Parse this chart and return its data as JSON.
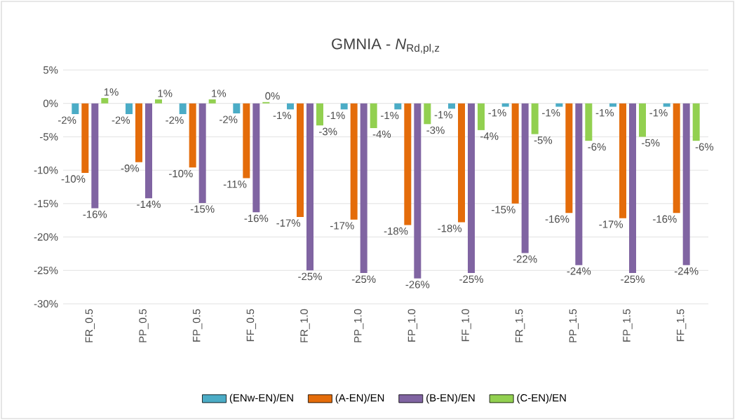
{
  "chart_data": {
    "type": "bar",
    "title": "GMNIA - *N*$_{Rd,pl,z}$",
    "categories": [
      "FR_0.5",
      "PP_0.5",
      "FP_0.5",
      "FF_0.5",
      "FR_1.0",
      "PP_1.0",
      "FP_1.0",
      "FF_1.0",
      "FR_1.5",
      "PP_1.5",
      "FP_1.5",
      "FF_1.5"
    ],
    "series": [
      {
        "name": "(ENw-EN)/EN",
        "color": "#4bacc6",
        "values": [
          -1.6,
          -1.6,
          -1.6,
          -1.5,
          -0.9,
          -0.9,
          -0.9,
          -0.8,
          -0.5,
          -0.5,
          -0.5,
          -0.5
        ],
        "value_labels": [
          "-2%",
          "-2%",
          "-2%",
          "-2%",
          "-1%",
          "-1%",
          "-1%",
          "-1%",
          "-1%",
          "-1%",
          "-1%",
          "-1%"
        ]
      },
      {
        "name": "(A-EN)/EN",
        "color": "#e46c0a",
        "values": [
          -10.4,
          -8.8,
          -9.6,
          -11.2,
          -17.0,
          -17.4,
          -18.2,
          -17.8,
          -15.0,
          -16.4,
          -17.2,
          -16.4
        ],
        "value_labels": [
          "-10%",
          "-9%",
          "-10%",
          "-11%",
          "-17%",
          "-17%",
          "-18%",
          "-18%",
          "-15%",
          "-16%",
          "-17%",
          "-16%"
        ]
      },
      {
        "name": "(B-EN)/EN",
        "color": "#8064a2",
        "values": [
          -15.7,
          -14.2,
          -14.9,
          -16.3,
          -25.0,
          -25.4,
          -26.2,
          -25.4,
          -22.4,
          -24.2,
          -25.4,
          -24.2
        ],
        "value_labels": [
          "-16%",
          "-14%",
          "-15%",
          "-16%",
          "-25%",
          "-25%",
          "-26%",
          "-25%",
          "-22%",
          "-24%",
          "-25%",
          "-24%"
        ]
      },
      {
        "name": "(C-EN)/EN",
        "color": "#92d050",
        "values": [
          0.8,
          0.6,
          0.6,
          0.2,
          -3.3,
          -3.7,
          -3.1,
          -4.0,
          -4.6,
          -5.6,
          -5.0,
          -5.6
        ],
        "value_labels": [
          "1%",
          "1%",
          "1%",
          "0%",
          "-3%",
          "-4%",
          "-3%",
          "-4%",
          "-5%",
          "-6%",
          "-5%",
          "-6%"
        ]
      }
    ],
    "ylim": [
      -30,
      5
    ],
    "yticks": [
      {
        "value": -30,
        "label": "-30%"
      },
      {
        "value": -25,
        "label": "-25%"
      },
      {
        "value": -20,
        "label": "-20%"
      },
      {
        "value": -15,
        "label": "-15%"
      },
      {
        "value": -10,
        "label": "-10%"
      },
      {
        "value": -5,
        "label": "-5%"
      },
      {
        "value": 0,
        "label": "0%"
      },
      {
        "value": 5,
        "label": "5%"
      }
    ],
    "grid": "y",
    "legend": "bottom"
  }
}
